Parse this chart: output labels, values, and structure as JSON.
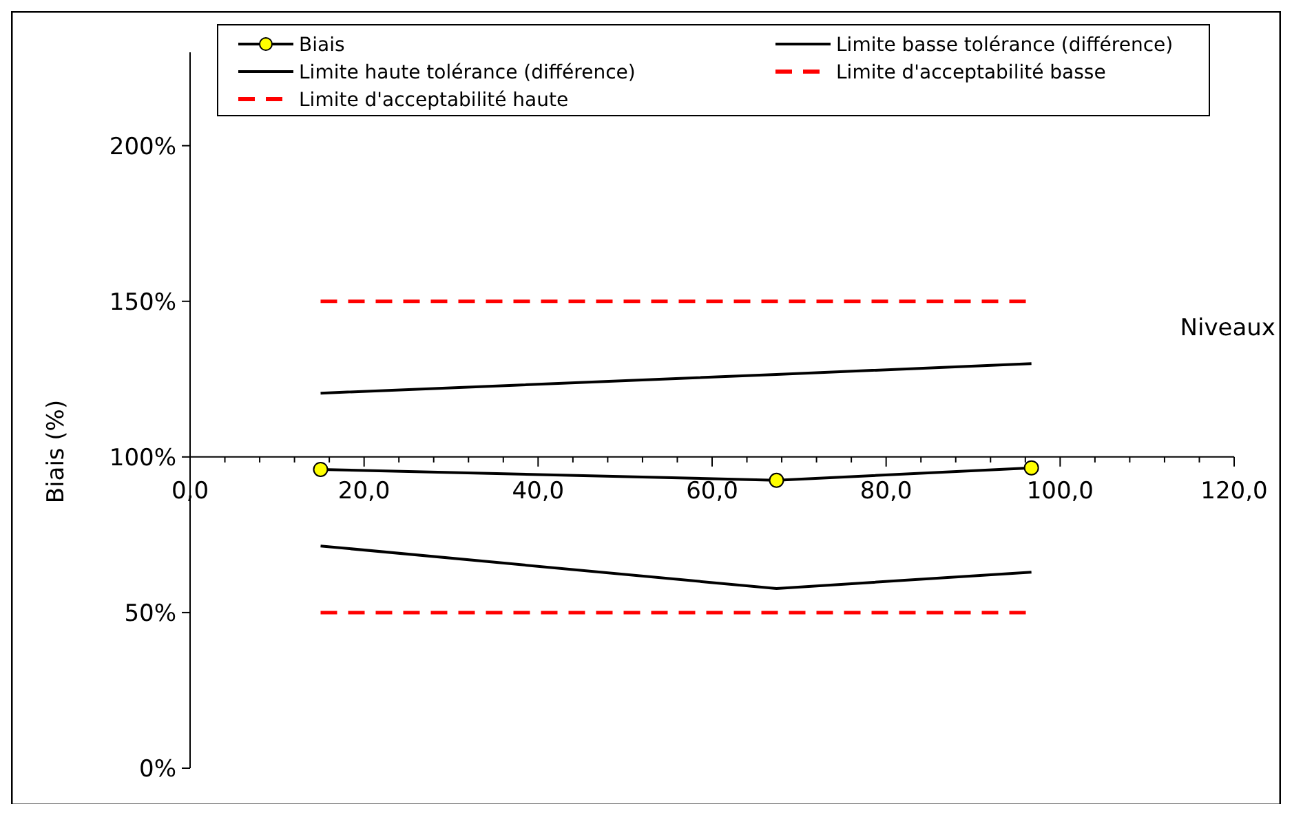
{
  "chart_data": {
    "type": "line",
    "xlabel": "Niveaux",
    "ylabel": "Biais (%)",
    "xlim": [
      0,
      120
    ],
    "ylim": [
      0,
      230
    ],
    "xticks": [
      {
        "value": 0,
        "label": "0,0"
      },
      {
        "value": 20,
        "label": "20,0"
      },
      {
        "value": 40,
        "label": "40,0"
      },
      {
        "value": 60,
        "label": "60,0"
      },
      {
        "value": 80,
        "label": "80,0"
      },
      {
        "value": 100,
        "label": "100,0"
      },
      {
        "value": 120,
        "label": "120,0"
      }
    ],
    "ref_lines": [
      {
        "axis": "y",
        "value": 100,
        "color": "#000000"
      }
    ],
    "yticks": [
      {
        "value": 0,
        "label": "0%"
      },
      {
        "value": 50,
        "label": "50%"
      },
      {
        "value": 100,
        "label": "100%"
      },
      {
        "value": 150,
        "label": "150%"
      },
      {
        "value": 200,
        "label": "200%"
      }
    ],
    "legend": "top",
    "grid": false,
    "series": [
      {
        "name": "Biais",
        "color": "#000000",
        "marker": "circle",
        "x": [
          15,
          67.4,
          96.7
        ],
        "values": [
          96,
          92.5,
          96.5
        ]
      },
      {
        "name": "Limite basse tolérance (différence)",
        "color": "#000000",
        "marker": "none",
        "x": [
          15,
          67.4,
          96.7
        ],
        "values": [
          71.4,
          57.7,
          63
        ]
      },
      {
        "name": "Limite haute tolérance (différence)",
        "color": "#000000",
        "marker": "none",
        "x": [
          15,
          67.4,
          96.7
        ],
        "values": [
          120.5,
          126.5,
          130
        ]
      },
      {
        "name": "Limite d'acceptabilité basse",
        "color": "#ff0000",
        "marker": "none",
        "line_style": "dashed",
        "x": [
          15,
          96.7
        ],
        "values": [
          50,
          50
        ]
      },
      {
        "name": "Limite d'acceptabilité haute",
        "color": "#ff0000",
        "marker": "none",
        "line_style": "dashed",
        "x": [
          15,
          96.7
        ],
        "values": [
          150,
          150
        ]
      }
    ]
  }
}
